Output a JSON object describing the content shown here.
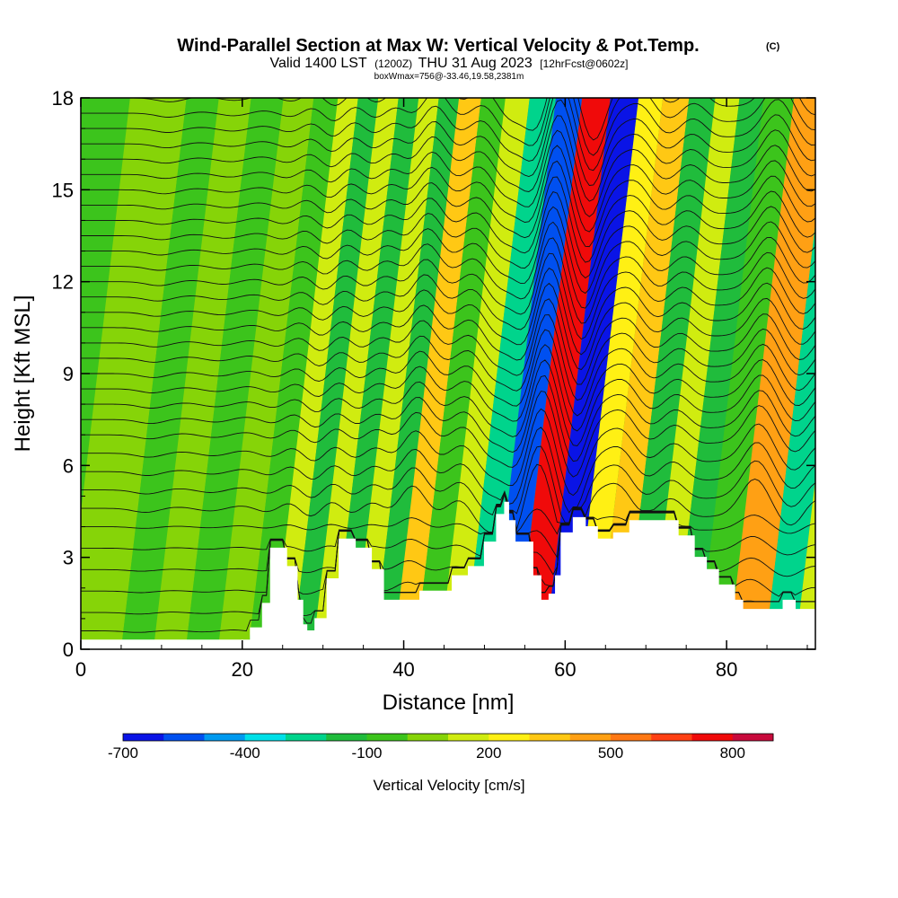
{
  "title": {
    "main": "Wind-Parallel Section at Max W: Vertical Velocity & Pot.Temp.",
    "mark": "(C)",
    "valid_prefix": "Valid 1400 LST",
    "valid_utc": "(1200Z)",
    "valid_date": "THU 31 Aug 2023",
    "forecast": "[12hrFcst@0602z]",
    "box": "boxWmax=756@-33.46,19.58,2381m"
  },
  "chart_data": {
    "type": "heatmap",
    "xlabel": "Distance [nm]",
    "ylabel": "Height [Kft MSL]",
    "xlim": [
      0,
      91
    ],
    "ylim": [
      0,
      18
    ],
    "x_ticks": [
      "0",
      "20",
      "40",
      "60",
      "80"
    ],
    "x_tick_values": [
      0,
      20,
      40,
      60,
      80
    ],
    "y_ticks": [
      "0",
      "3",
      "6",
      "9",
      "12",
      "15",
      "18"
    ],
    "y_tick_values": [
      0,
      3,
      6,
      9,
      12,
      15,
      18
    ],
    "colorbar": {
      "label": "Vertical Velocity [cm/s]",
      "tick_labels": [
        "-700",
        "-400",
        "-100",
        "200",
        "500",
        "800"
      ],
      "tick_values": [
        -700,
        -400,
        -100,
        200,
        500,
        800
      ],
      "levels": [
        -700,
        -600,
        -500,
        -400,
        -300,
        -200,
        -100,
        0,
        100,
        200,
        300,
        400,
        500,
        600,
        700,
        800,
        900
      ],
      "colors": [
        "#0a14e6",
        "#0050f0",
        "#009af0",
        "#00e0e8",
        "#00d48c",
        "#20bc3c",
        "#3cc41c",
        "#86d408",
        "#d0ec10",
        "#fff014",
        "#ffc814",
        "#ffa014",
        "#ff7814",
        "#ff4014",
        "#f00a0a",
        "#c80a3c"
      ]
    },
    "vertical_velocity_bands": [
      {
        "x": 3,
        "w": 0
      },
      {
        "x": 7,
        "w": -60
      },
      {
        "x": 11,
        "w": 20
      },
      {
        "x": 15,
        "w": -40
      },
      {
        "x": 19,
        "w": 40
      },
      {
        "x": 22.5,
        "w": -80
      },
      {
        "x": 25,
        "w": 140
      },
      {
        "x": 27.5,
        "w": -200
      },
      {
        "x": 30,
        "w": 180
      },
      {
        "x": 32.5,
        "w": -150
      },
      {
        "x": 35,
        "w": 150
      },
      {
        "x": 37.5,
        "w": -120
      },
      {
        "x": 40,
        "w": 380
      },
      {
        "x": 43,
        "w": -100
      },
      {
        "x": 46,
        "w": 170
      },
      {
        "x": 49,
        "w": -300
      },
      {
        "x": 52.5,
        "w": -520
      },
      {
        "x": 55.5,
        "w": 760
      },
      {
        "x": 59.5,
        "w": -690
      },
      {
        "x": 62.5,
        "w": 230
      },
      {
        "x": 65.5,
        "w": 330
      },
      {
        "x": 69,
        "w": -120
      },
      {
        "x": 72,
        "w": 180
      },
      {
        "x": 75,
        "w": -110
      },
      {
        "x": 78,
        "w": -90
      },
      {
        "x": 82.5,
        "w": 440
      },
      {
        "x": 87,
        "w": -280
      },
      {
        "x": 90,
        "w": 160
      }
    ],
    "terrain_height_kft": [
      [
        0,
        0.3
      ],
      [
        21,
        0.3
      ],
      [
        21,
        0.7
      ],
      [
        22.5,
        0.7
      ],
      [
        22.5,
        1.5
      ],
      [
        23.5,
        1.5
      ],
      [
        23.5,
        3.3
      ],
      [
        25.5,
        3.3
      ],
      [
        25.5,
        2.7
      ],
      [
        26.8,
        2.7
      ],
      [
        26.8,
        1.6
      ],
      [
        27.5,
        1.6
      ],
      [
        27.5,
        0.8
      ],
      [
        28,
        0.8
      ],
      [
        28,
        0.6
      ],
      [
        29,
        0.6
      ],
      [
        29,
        1.0
      ],
      [
        30.5,
        1.0
      ],
      [
        30.5,
        2.3
      ],
      [
        32,
        2.3
      ],
      [
        32,
        3.6
      ],
      [
        34,
        3.6
      ],
      [
        34,
        3.3
      ],
      [
        36,
        3.3
      ],
      [
        36,
        2.6
      ],
      [
        37.5,
        2.6
      ],
      [
        37.5,
        1.6
      ],
      [
        42,
        1.6
      ],
      [
        42,
        1.9
      ],
      [
        46,
        1.9
      ],
      [
        46,
        2.4
      ],
      [
        48,
        2.4
      ],
      [
        48,
        2.7
      ],
      [
        50,
        2.7
      ],
      [
        50,
        3.5
      ],
      [
        51.5,
        3.5
      ],
      [
        51.5,
        4.4
      ],
      [
        52.5,
        4.4
      ],
      [
        52.5,
        4.8
      ],
      [
        53,
        4.8
      ],
      [
        53,
        4.2
      ],
      [
        53.8,
        4.2
      ],
      [
        53.8,
        3.5
      ],
      [
        56,
        3.5
      ],
      [
        56,
        2.4
      ],
      [
        57,
        2.4
      ],
      [
        57,
        1.6
      ],
      [
        58,
        1.6
      ],
      [
        58,
        1.8
      ],
      [
        58.8,
        1.8
      ],
      [
        58.8,
        2.4
      ],
      [
        59.5,
        2.4
      ],
      [
        59.5,
        3.8
      ],
      [
        61,
        3.8
      ],
      [
        61,
        4.3
      ],
      [
        62.5,
        4.3
      ],
      [
        62.5,
        4.0
      ],
      [
        64,
        4.0
      ],
      [
        64,
        3.6
      ],
      [
        66,
        3.6
      ],
      [
        66,
        3.8
      ],
      [
        68,
        3.8
      ],
      [
        68,
        4.2
      ],
      [
        74,
        4.2
      ],
      [
        74,
        3.7
      ],
      [
        76,
        3.7
      ],
      [
        76,
        3.0
      ],
      [
        77.5,
        3.0
      ],
      [
        77.5,
        2.6
      ],
      [
        79,
        2.6
      ],
      [
        79,
        2.1
      ],
      [
        81,
        2.1
      ],
      [
        81,
        1.6
      ],
      [
        82,
        1.6
      ],
      [
        82,
        1.3
      ],
      [
        87,
        1.3
      ],
      [
        87,
        1.6
      ],
      [
        88.5,
        1.6
      ],
      [
        88.5,
        1.3
      ],
      [
        91,
        1.3
      ]
    ],
    "isentrope_bases_kft": [
      0.6,
      1.2,
      1.9,
      2.6,
      3.3,
      4.0,
      4.6,
      5.2,
      5.8,
      6.4,
      7.0,
      7.5,
      8.0,
      8.5,
      9.0,
      9.5,
      10.0,
      10.5,
      11.0,
      11.5,
      12.0,
      12.5,
      13.0,
      13.5,
      14.0,
      14.5,
      15.0,
      15.5,
      16.0,
      16.5,
      17.0,
      17.5,
      18.0
    ]
  }
}
